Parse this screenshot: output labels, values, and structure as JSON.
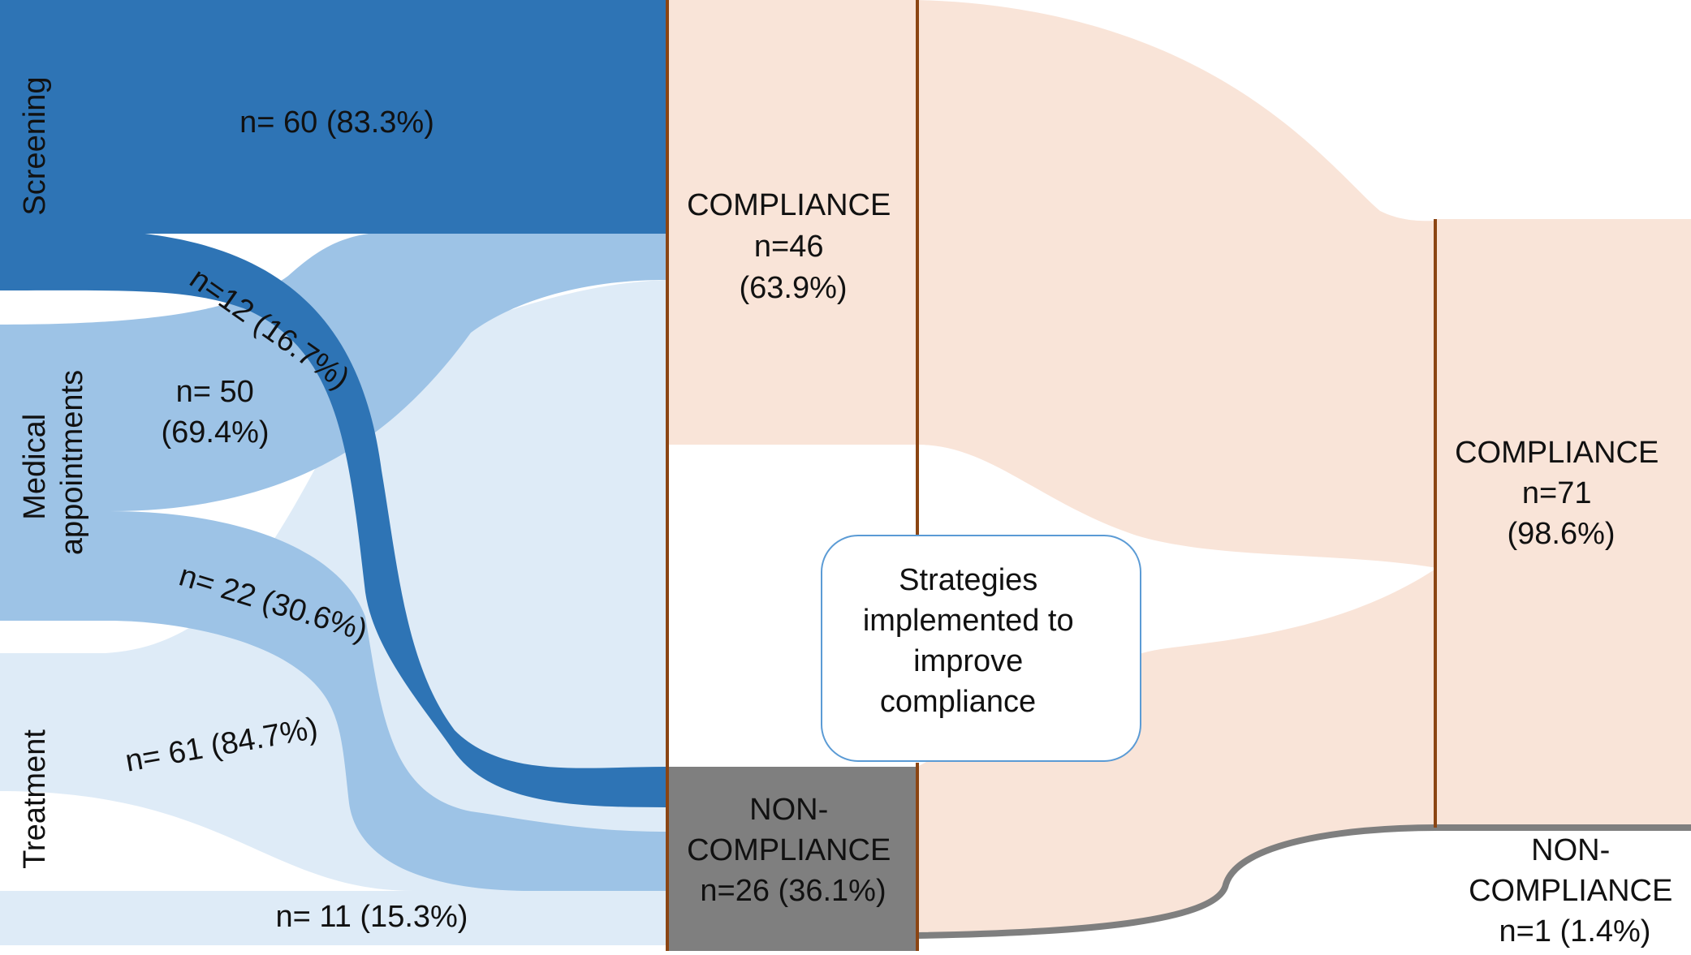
{
  "categories": {
    "screening": "Screening",
    "medical": [
      "Medical",
      "appointments"
    ],
    "treatment": "Treatment"
  },
  "flows": {
    "screening_comp": "n= 60 (83.3%)",
    "screening_noncomp": "n=12 (16.7%)",
    "medical_comp": [
      "n= 50",
      "(69.4%)"
    ],
    "medical_noncomp": "n= 22 (30.6%)",
    "treatment_comp": "n= 61 (84.7%)",
    "treatment_noncomp": "n= 11 (15.3%)"
  },
  "middle": {
    "compliance": [
      "COMPLIANCE",
      "n=46",
      "(63.9%)"
    ],
    "noncompliance": [
      "NON-",
      "COMPLIANCE",
      "n=26 (36.1%)"
    ]
  },
  "strategy_box": [
    "Strategies",
    "implemented to",
    "improve",
    "compliance"
  ],
  "final": {
    "compliance": [
      "COMPLIANCE",
      "n=71",
      "(98.6%)"
    ],
    "noncompliance": [
      "NON-",
      "COMPLIANCE",
      "n=1 (1.4%)"
    ]
  },
  "colors": {
    "dark_blue": "#2e74b5",
    "mid_blue": "#9dc3e6",
    "light_blue": "#deebf7",
    "peach": "#f9e4d8",
    "gray": "#7f7f7f",
    "divider": "#8b4513"
  }
}
